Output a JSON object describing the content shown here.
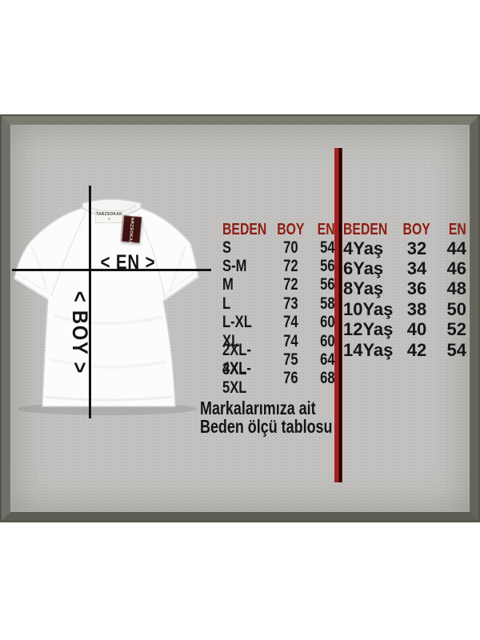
{
  "colors": {
    "header_red": "#8e1c12",
    "divider_red": "#a91d1d",
    "line_black": "#131313",
    "panel_gray": "#c7c6c4",
    "frame_gray": "#6d6d63",
    "tag_maroon": "#3d1210",
    "shirt_white": "#fcfcfc"
  },
  "shirt": {
    "neck_brand": "TARZSOKAK",
    "neck_mark": "©",
    "tag_brand": "TARZSOKAK",
    "width_label": "< EN >",
    "length_label": "< BOY >"
  },
  "adult_table": {
    "headers": [
      "BEDEN",
      "BOY",
      "EN"
    ],
    "rows": [
      {
        "size": "S",
        "boy": "70",
        "en": "54"
      },
      {
        "size": "S-M",
        "boy": "72",
        "en": "56"
      },
      {
        "size": "M",
        "boy": "72",
        "en": "56"
      },
      {
        "size": "L",
        "boy": "73",
        "en": "58"
      },
      {
        "size": "L-XL",
        "boy": "74",
        "en": "60"
      },
      {
        "size": "XL",
        "boy": "74",
        "en": "60"
      },
      {
        "size": "2XL-3XL",
        "boy": "75",
        "en": "64"
      },
      {
        "size": "4XL-5XL",
        "boy": "76",
        "en": "68"
      }
    ]
  },
  "kids_table": {
    "headers": [
      "BEDEN",
      "BOY",
      "EN"
    ],
    "rows": [
      {
        "size": "4Yaş",
        "boy": "32",
        "en": "44"
      },
      {
        "size": "6Yaş",
        "boy": "34",
        "en": "46"
      },
      {
        "size": "8Yaş",
        "boy": "36",
        "en": "48"
      },
      {
        "size": "10Yaş",
        "boy": "38",
        "en": "50"
      },
      {
        "size": "12Yaş",
        "boy": "40",
        "en": "52"
      },
      {
        "size": "14Yaş",
        "boy": "42",
        "en": "54"
      }
    ]
  },
  "caption": {
    "line1": "Markalarımıza ait",
    "line2": "Beden ölçü tablosu"
  }
}
